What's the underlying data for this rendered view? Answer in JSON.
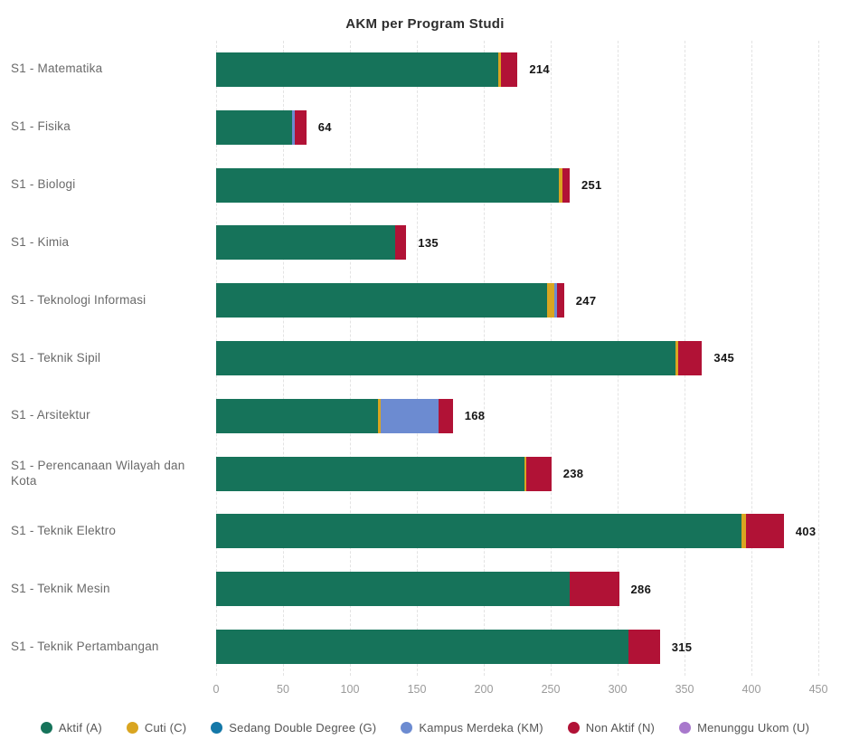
{
  "chart": {
    "title": "AKM per Program Studi"
  },
  "legend": {
    "items": [
      {
        "key": "A",
        "label": "Aktif (A)",
        "color": "#16735A"
      },
      {
        "key": "C",
        "label": "Cuti (C)",
        "color": "#D9A521"
      },
      {
        "key": "G",
        "label": "Sedang Double Degree (G)",
        "color": "#1478A8"
      },
      {
        "key": "KM",
        "label": "Kampus Merdeka (KM)",
        "color": "#6C8BD1"
      },
      {
        "key": "N",
        "label": "Non Aktif (N)",
        "color": "#B11236"
      },
      {
        "key": "U",
        "label": "Menunggu Ukom (U)",
        "color": "#A878CC"
      }
    ]
  },
  "chart_data": {
    "type": "bar",
    "orientation": "horizontal",
    "stacked": true,
    "title": "AKM per Program Studi",
    "xlabel": "",
    "ylabel": "",
    "xmax": 450,
    "ticks": [
      0,
      50,
      100,
      150,
      200,
      250,
      300,
      350,
      400,
      450
    ],
    "grid": "dashed-vertical",
    "legend_position": "bottom",
    "categories": [
      "S1 - Matematika",
      "S1 - Fisika",
      "S1 - Biologi",
      "S1 - Kimia",
      "S1 - Teknologi Informasi",
      "S1 - Teknik Sipil",
      "S1 - Arsitektur",
      "S1 - Perencanaan Wilayah dan Kota",
      "S1 - Teknik Elektro",
      "S1 - Teknik Mesin",
      "S1 - Teknik Pertambangan"
    ],
    "totals": [
      214,
      64,
      251,
      135,
      247,
      345,
      168,
      238,
      403,
      286,
      315
    ],
    "series": [
      {
        "name": "Aktif (A)",
        "key": "A",
        "color": "#16735A",
        "values": [
          200,
          54,
          243,
          127,
          235,
          326,
          115,
          219,
          373,
          251,
          293
        ]
      },
      {
        "name": "Cuti (C)",
        "key": "C",
        "color": "#D9A521",
        "values": [
          2,
          0,
          3,
          0,
          5,
          2,
          2,
          1,
          3,
          0,
          0
        ]
      },
      {
        "name": "Sedang Double Degree (G)",
        "key": "G",
        "color": "#1478A8",
        "values": [
          0,
          0,
          0,
          0,
          0,
          0,
          0,
          0,
          0,
          0,
          0
        ]
      },
      {
        "name": "Kampus Merdeka (KM)",
        "key": "KM",
        "color": "#6C8BD1",
        "values": [
          0,
          2,
          0,
          0,
          2,
          0,
          41,
          0,
          0,
          0,
          0
        ]
      },
      {
        "name": "Non Aktif (N)",
        "key": "N",
        "color": "#B11236",
        "values": [
          12,
          8,
          5,
          8,
          5,
          17,
          10,
          18,
          27,
          35,
          22
        ]
      },
      {
        "name": "Menunggu Ukom (U)",
        "key": "U",
        "color": "#A878CC",
        "values": [
          0,
          0,
          0,
          0,
          0,
          0,
          0,
          0,
          0,
          0,
          0
        ]
      }
    ]
  }
}
